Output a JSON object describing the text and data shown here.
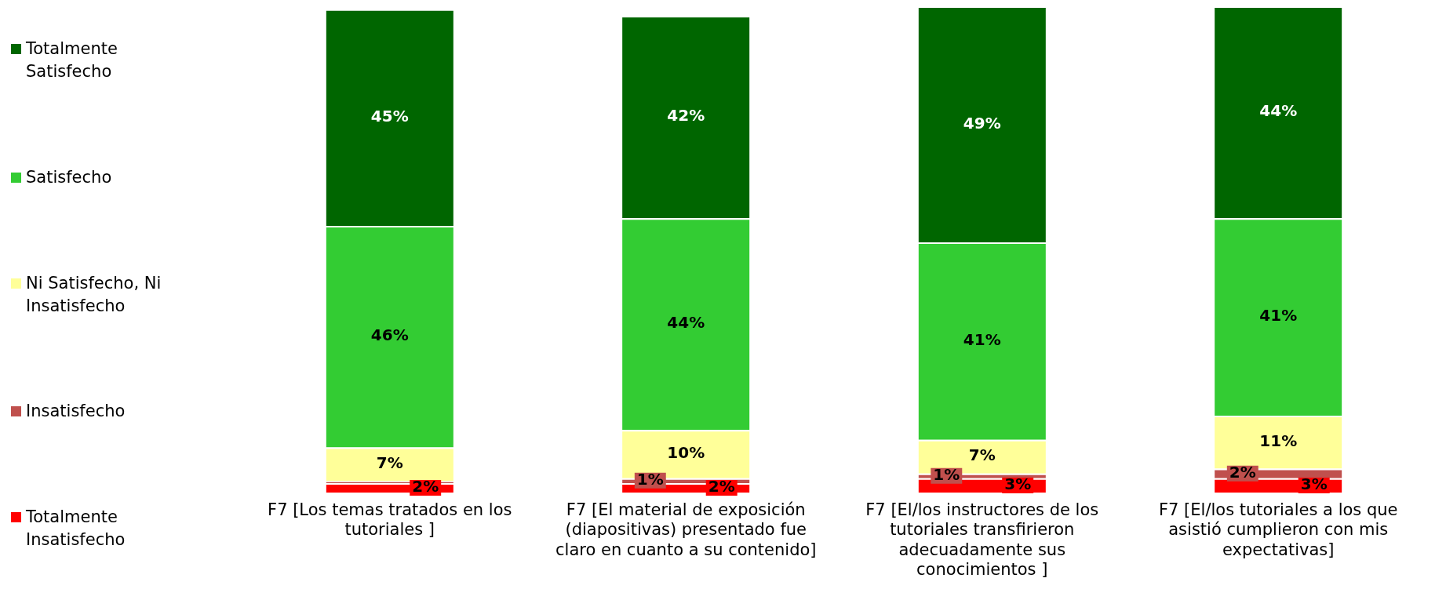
{
  "chart_data": {
    "type": "bar",
    "stacked": true,
    "legend": "left",
    "categories": [
      "F7 [Los temas tratados en los tutoriales ]",
      "F7 [El material de exposición (diapositivas) presentado fue claro en cuanto a su contenido]",
      "F7 [El/los instructores de los tutoriales transfirieron adecuadamente sus conocimientos ]",
      "F7 [El/los tutoriales a los que asistió cumplieron con mis expectativas]"
    ],
    "series": [
      {
        "name": "Totalmente Insatisfecho",
        "color": "#ff0000",
        "values": [
          2,
          2,
          3,
          3
        ],
        "value_labels": [
          "2%",
          "2%",
          "3%",
          "3%"
        ]
      },
      {
        "name": "Insatisfecho",
        "color": "#c0504d",
        "values": [
          0.4,
          1,
          1,
          2
        ],
        "value_labels": [
          null,
          "1%",
          "1%",
          "2%"
        ]
      },
      {
        "name": "Ni Satisfecho, Ni Insatisfecho",
        "color": "#ffff99",
        "values": [
          7,
          10,
          7,
          11
        ],
        "value_labels": [
          "7%",
          "10%",
          "7%",
          "11%"
        ]
      },
      {
        "name": "Satisfecho",
        "color": "#33cc33",
        "values": [
          46,
          44,
          41,
          41
        ],
        "value_labels": [
          "46%",
          "44%",
          "41%",
          "41%"
        ]
      },
      {
        "name": "Totalmente Satisfecho",
        "color": "#006600",
        "values": [
          45,
          42,
          49,
          44
        ],
        "value_labels": [
          "45%",
          "42%",
          "49%",
          "44%"
        ]
      }
    ]
  }
}
